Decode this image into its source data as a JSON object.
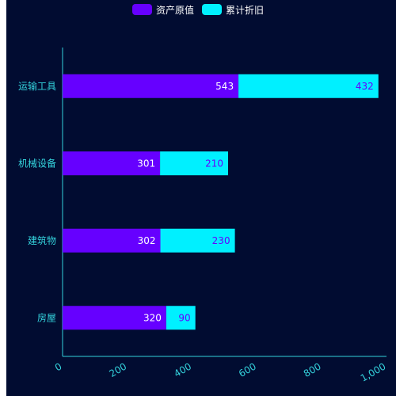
{
  "chart_data": {
    "type": "bar",
    "orientation": "horizontal",
    "stacked": true,
    "categories": [
      "运输工具",
      "机械设备",
      "建筑物",
      "房屋"
    ],
    "series": [
      {
        "name": "资产原值",
        "values": [
          543,
          301,
          302,
          320
        ],
        "color": "#6600ff",
        "label_color": "#ffffff"
      },
      {
        "name": "累计折旧",
        "values": [
          432,
          210,
          230,
          90
        ],
        "color": "#00f0ff",
        "label_color": "#6600ff"
      }
    ],
    "xlim": [
      0,
      1000
    ],
    "xticks": [
      "0",
      "200",
      "400",
      "600",
      "800",
      "1,000"
    ],
    "legend_position": "top-center",
    "grid": false,
    "axis_color": "#34d2dc",
    "label_color": "#34d2dc",
    "background": "#010c31"
  }
}
